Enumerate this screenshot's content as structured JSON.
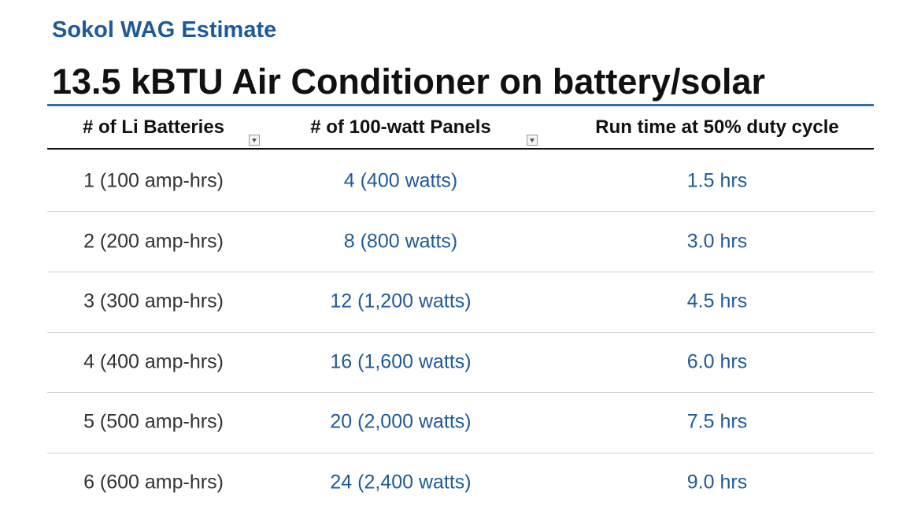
{
  "header": {
    "subtitle": "Sokol WAG Estimate",
    "title": "13.5 kBTU Air Conditioner on battery/solar"
  },
  "table": {
    "columns": [
      "# of Li Batteries",
      "# of 100-watt Panels",
      "Run time at 50% duty cycle"
    ],
    "rows": [
      [
        "1 (100 amp-hrs)",
        "4 (400 watts)",
        "1.5 hrs"
      ],
      [
        "2 (200 amp-hrs)",
        "8 (800 watts)",
        "3.0 hrs"
      ],
      [
        "3 (300 amp-hrs)",
        "12 (1,200 watts)",
        "4.5 hrs"
      ],
      [
        "4 (400 amp-hrs)",
        "16 (1,600 watts)",
        "6.0 hrs"
      ],
      [
        "5 (500 amp-hrs)",
        "20 (2,000 watts)",
        "7.5 hrs"
      ],
      [
        "6 (600 amp-hrs)",
        "24 (2,400 watts)",
        "9.0 hrs"
      ]
    ]
  }
}
